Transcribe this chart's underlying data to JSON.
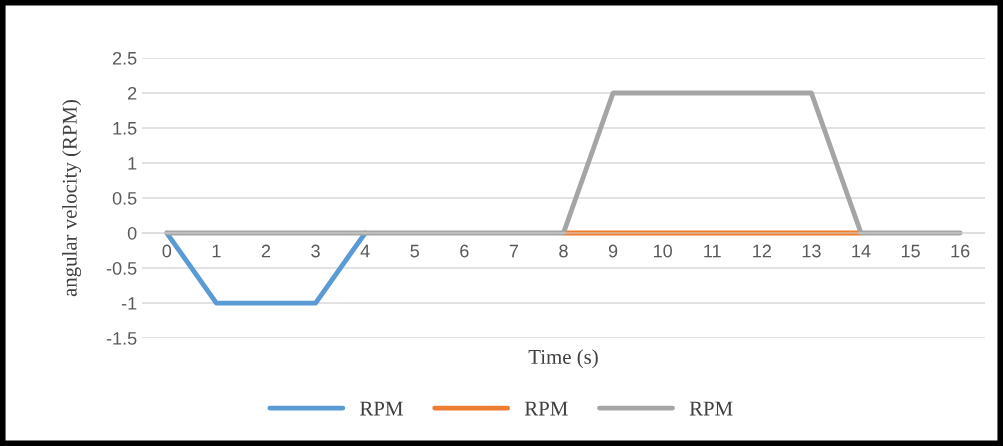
{
  "chart_data": {
    "type": "line",
    "categories": [
      "0",
      "1",
      "2",
      "3",
      "4",
      "5",
      "6",
      "7",
      "8",
      "9",
      "10",
      "11",
      "12",
      "13",
      "14",
      "15",
      "16"
    ],
    "series": [
      {
        "name": "RPM",
        "color": "#5b9bd5",
        "values": [
          0,
          -1,
          -1,
          -1,
          0,
          null,
          null,
          null,
          null,
          null,
          null,
          null,
          null,
          null,
          null,
          null,
          null
        ]
      },
      {
        "name": "RPM",
        "color": "#ed7d31",
        "values": [
          null,
          null,
          null,
          null,
          null,
          null,
          null,
          null,
          0,
          0,
          0,
          0,
          0,
          0,
          0,
          null,
          null
        ]
      },
      {
        "name": "RPM",
        "color": "#a5a5a5",
        "values": [
          0,
          0,
          0,
          0,
          0,
          0,
          0,
          0,
          0,
          2,
          2,
          2,
          2,
          2,
          0,
          0,
          0
        ]
      }
    ],
    "xlabel": "Time (s)",
    "ylabel": "angular velocity (RPM)",
    "ylim": [
      -1.5,
      2.5
    ],
    "yticks": [
      -1.5,
      -1,
      -0.5,
      0,
      0.5,
      1,
      1.5,
      2,
      2.5
    ],
    "grid": "y",
    "legend": "bottom",
    "marker": "none",
    "line_style": "solid"
  }
}
